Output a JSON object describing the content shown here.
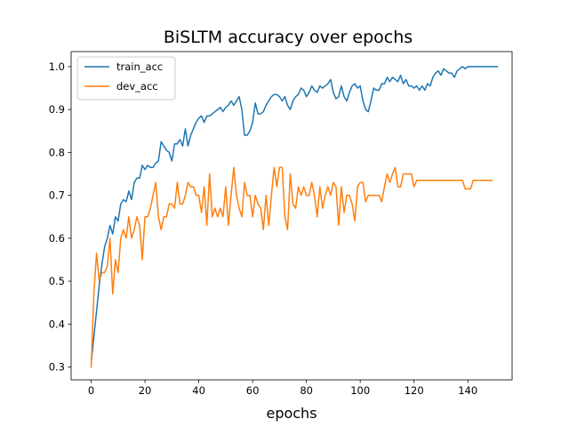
{
  "chart_data": {
    "type": "line",
    "title": "BiSLTM accuracy over epochs",
    "xlabel": "epochs",
    "ylabel": "",
    "xlim": [
      -7.45,
      156.45
    ],
    "ylim": [
      0.27,
      1.035
    ],
    "xticks": [
      0,
      20,
      40,
      60,
      80,
      100,
      120,
      140
    ],
    "xtick_labels": [
      "0",
      "20",
      "40",
      "60",
      "80",
      "100",
      "120",
      "140"
    ],
    "yticks": [
      0.3,
      0.4,
      0.5,
      0.6,
      0.7,
      0.8,
      0.9,
      1.0
    ],
    "ytick_labels": [
      "0.3",
      "0.4",
      "0.5",
      "0.6",
      "0.7",
      "0.8",
      "0.9",
      "1.0"
    ],
    "grid": false,
    "legend_position": "top-left",
    "series": [
      {
        "name": "train_acc",
        "color": "#1f77b4",
        "values": [
          0.31,
          0.37,
          0.43,
          0.49,
          0.54,
          0.58,
          0.6,
          0.63,
          0.61,
          0.65,
          0.64,
          0.68,
          0.69,
          0.685,
          0.71,
          0.69,
          0.73,
          0.74,
          0.74,
          0.77,
          0.76,
          0.77,
          0.765,
          0.765,
          0.775,
          0.78,
          0.825,
          0.815,
          0.805,
          0.8,
          0.78,
          0.82,
          0.82,
          0.83,
          0.815,
          0.855,
          0.815,
          0.84,
          0.855,
          0.87,
          0.88,
          0.885,
          0.87,
          0.885,
          0.885,
          0.89,
          0.895,
          0.9,
          0.905,
          0.895,
          0.905,
          0.91,
          0.92,
          0.91,
          0.92,
          0.93,
          0.9,
          0.84,
          0.84,
          0.85,
          0.87,
          0.915,
          0.89,
          0.89,
          0.895,
          0.91,
          0.92,
          0.93,
          0.935,
          0.935,
          0.93,
          0.92,
          0.93,
          0.91,
          0.9,
          0.92,
          0.93,
          0.935,
          0.95,
          0.945,
          0.93,
          0.94,
          0.955,
          0.945,
          0.94,
          0.955,
          0.95,
          0.955,
          0.96,
          0.97,
          0.94,
          0.925,
          0.93,
          0.955,
          0.93,
          0.92,
          0.94,
          0.955,
          0.96,
          0.95,
          0.955,
          0.92,
          0.9,
          0.895,
          0.92,
          0.95,
          0.945,
          0.945,
          0.96,
          0.96,
          0.975,
          0.965,
          0.975,
          0.97,
          0.965,
          0.98,
          0.96,
          0.97,
          0.955,
          0.955,
          0.95,
          0.955,
          0.945,
          0.955,
          0.945,
          0.96,
          0.955,
          0.975,
          0.985,
          0.99,
          0.98,
          0.995,
          0.99,
          0.985,
          0.985,
          0.975,
          0.99,
          0.995,
          1.0,
          0.995,
          1.0,
          1.0,
          1.0,
          1.0,
          1.0,
          1.0,
          1.0,
          1.0,
          1.0,
          1.0,
          1.0,
          1.0
        ]
      },
      {
        "name": "dev_acc",
        "color": "#ff7f0e",
        "values": [
          0.3,
          0.47,
          0.565,
          0.5,
          0.52,
          0.52,
          0.535,
          0.6,
          0.47,
          0.55,
          0.52,
          0.6,
          0.62,
          0.6,
          0.65,
          0.6,
          0.62,
          0.65,
          0.63,
          0.55,
          0.65,
          0.65,
          0.67,
          0.7,
          0.73,
          0.65,
          0.62,
          0.65,
          0.65,
          0.68,
          0.68,
          0.67,
          0.73,
          0.68,
          0.68,
          0.7,
          0.73,
          0.72,
          0.72,
          0.7,
          0.7,
          0.66,
          0.72,
          0.63,
          0.75,
          0.65,
          0.67,
          0.65,
          0.67,
          0.65,
          0.72,
          0.63,
          0.7,
          0.765,
          0.7,
          0.67,
          0.65,
          0.73,
          0.7,
          0.7,
          0.65,
          0.7,
          0.68,
          0.67,
          0.62,
          0.7,
          0.63,
          0.7,
          0.765,
          0.72,
          0.765,
          0.765,
          0.65,
          0.62,
          0.75,
          0.68,
          0.67,
          0.72,
          0.7,
          0.72,
          0.7,
          0.7,
          0.73,
          0.7,
          0.65,
          0.72,
          0.67,
          0.7,
          0.72,
          0.7,
          0.73,
          0.72,
          0.63,
          0.72,
          0.66,
          0.7,
          0.7,
          0.68,
          0.64,
          0.72,
          0.73,
          0.73,
          0.685,
          0.7,
          0.7,
          0.7,
          0.7,
          0.7,
          0.685,
          0.72,
          0.75,
          0.73,
          0.75,
          0.765,
          0.72,
          0.72,
          0.75,
          0.75,
          0.75,
          0.75,
          0.72,
          0.735,
          0.735,
          0.735,
          0.735,
          0.735,
          0.735,
          0.735,
          0.735,
          0.735,
          0.735,
          0.735,
          0.735,
          0.735,
          0.735,
          0.735,
          0.735,
          0.735,
          0.735,
          0.715,
          0.715,
          0.715,
          0.735,
          0.735,
          0.735,
          0.735,
          0.735,
          0.735,
          0.735,
          0.735
        ]
      }
    ]
  }
}
